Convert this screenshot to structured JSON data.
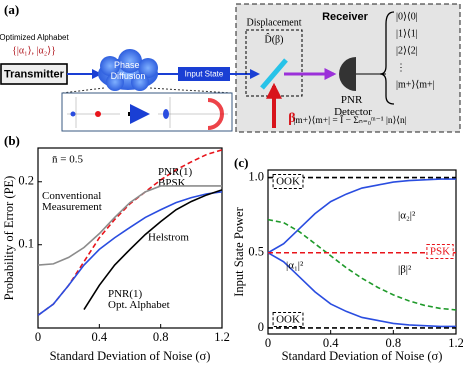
{
  "panel_a": {
    "label": "(a)",
    "alphabet_title": "Optimized Alphabet",
    "alphabet": "{|α₁⟩, |α₂⟩}",
    "transmitter": "Transmitter",
    "channel": "Phase Diffusion",
    "input_state": "Input State",
    "receiver": "Receiver",
    "displacement": "Displacement",
    "displacement_op": "D̂(β)",
    "beta": "β",
    "detector": "PNR Detector",
    "projectors": [
      "|0⟩⟨0|",
      "|1⟩⟨1|",
      "|2⟩⟨2|",
      "⋮",
      "|m+⟩⟨m+|"
    ],
    "last_projector": "|m+⟩⟨m+| = Î − Σₙ₌₀ᵐ⁻¹ |n⟩⟨n|"
  },
  "chart_data": [
    {
      "type": "line",
      "panel": "(b)",
      "annotation": "n̄ = 0.5",
      "x_label": "Standard Deviation of Noise (σ)",
      "y_label": "Probability of Error (PE)",
      "log_y": true,
      "xlim": [
        0,
        1.2
      ],
      "ylim": [
        0.04,
        0.29
      ],
      "xticks": [
        0,
        0.4,
        0.8,
        1.2
      ],
      "yticks": [
        0.1,
        0.2
      ],
      "x": [
        0,
        0.1,
        0.2,
        0.3,
        0.4,
        0.5,
        0.6,
        0.7,
        0.8,
        0.9,
        1.0,
        1.1,
        1.2
      ],
      "series": [
        {
          "name": "PNR(1) BPSK",
          "color": "#e8141b",
          "linestyle": "dashed",
          "values": [
            0.046,
            0.052,
            0.064,
            0.083,
            0.108,
            0.132,
            0.157,
            0.179,
            0.204,
            0.228,
            0.249,
            0.27,
            0.284
          ]
        },
        {
          "name": "Conventional Measurement",
          "color": "#8c8c8c",
          "linestyle": "solid",
          "values": [
            0.08,
            0.081,
            0.087,
            0.097,
            0.113,
            0.135,
            0.159,
            0.179,
            0.191,
            0.191,
            0.191,
            0.191,
            0.191
          ]
        },
        {
          "name": "PNR(1) Opt. Alphabet",
          "color": "#2a4de0",
          "linestyle": "solid",
          "values": [
            0.046,
            0.052,
            0.064,
            0.08,
            0.095,
            0.108,
            0.121,
            0.135,
            0.147,
            0.159,
            0.168,
            0.175,
            0.179
          ]
        },
        {
          "name": "Helstrom",
          "color": "#000000",
          "linestyle": "solid",
          "values": [
            null,
            null,
            null,
            0.049,
            0.064,
            0.08,
            0.095,
            0.112,
            0.129,
            0.147,
            0.161,
            0.173,
            0.183
          ]
        }
      ]
    },
    {
      "type": "line",
      "panel": "(c)",
      "x_label": "Standard Deviation of Noise (σ)",
      "y_label": "Input State Power",
      "log_y": false,
      "xlim": [
        0,
        1.2
      ],
      "ylim": [
        -0.04,
        1.05
      ],
      "xticks": [
        0,
        0.4,
        0.8,
        1.2
      ],
      "yticks": [
        0,
        0.5,
        {
          "value": 1,
          "label": "1.0"
        }
      ],
      "x": [
        0,
        0.1,
        0.2,
        0.3,
        0.4,
        0.5,
        0.6,
        0.7,
        0.8,
        0.9,
        1.0,
        1.1,
        1.2
      ],
      "series": [
        {
          "name": "|α₂|²",
          "color": "#2a4de0",
          "linestyle": "solid",
          "values": [
            0.5,
            0.56,
            0.66,
            0.76,
            0.84,
            0.89,
            0.93,
            0.95,
            0.97,
            0.98,
            0.985,
            0.99,
            0.99
          ]
        },
        {
          "name": "|β|²",
          "color": "#1f9a2a",
          "linestyle": "dashed",
          "values": [
            0.72,
            0.7,
            0.64,
            0.56,
            0.48,
            0.4,
            0.33,
            0.27,
            0.22,
            0.18,
            0.15,
            0.13,
            0.12
          ]
        },
        {
          "name": "|α₁|²",
          "color": "#2a4de0",
          "linestyle": "solid",
          "values": [
            0.5,
            0.44,
            0.34,
            0.24,
            0.16,
            0.11,
            0.07,
            0.05,
            0.03,
            0.02,
            0.015,
            0.01,
            0.01
          ]
        },
        {
          "name": "PSK",
          "color": "#e8141b",
          "linestyle": "dashed",
          "values": [
            0.5,
            0.5,
            0.5,
            0.5,
            0.5,
            0.5,
            0.5,
            0.5,
            0.5,
            0.5,
            0.5,
            0.5,
            0.5
          ]
        },
        {
          "name": "OOK",
          "color": "#000000",
          "linestyle": "dashed",
          "values": [
            1,
            1,
            1,
            1,
            1,
            1,
            1,
            1,
            1,
            1,
            1,
            1,
            1
          ]
        },
        {
          "name": "OOK",
          "color": "#000000",
          "linestyle": "dashed",
          "values": [
            0,
            0,
            0,
            0,
            0,
            0,
            0,
            0,
            0,
            0,
            0,
            0,
            0
          ]
        }
      ]
    }
  ]
}
